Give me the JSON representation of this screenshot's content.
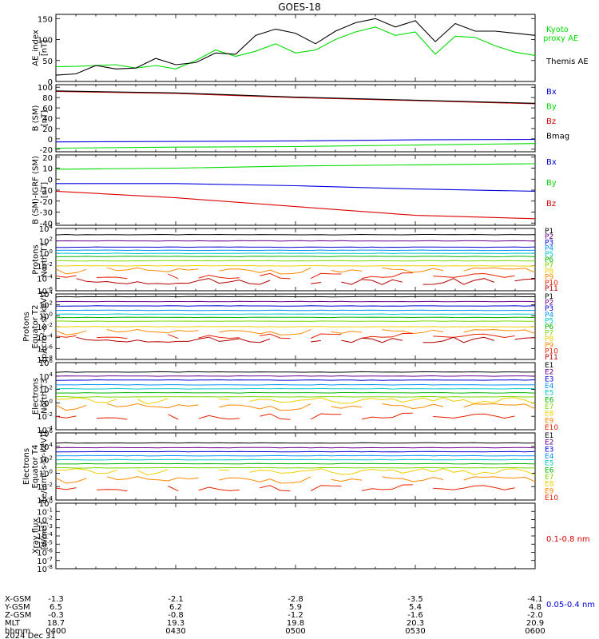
{
  "title": "GOES-18",
  "colors": {
    "black": "#000000",
    "green": "#00dd00",
    "blue": "#0000dd",
    "red": "#dd0000",
    "channels": [
      "#000000",
      "#6a0090",
      "#0000d8",
      "#0090ff",
      "#00c8c8",
      "#00b400",
      "#7ad800",
      "#f0d000",
      "#ff8800",
      "#e82000",
      "#b40000"
    ]
  },
  "chart_data": [
    {
      "type": "line",
      "id": "ae",
      "ylabel": "AE_index\n[nT]",
      "ylim": [
        0,
        160
      ],
      "yticks": [
        0,
        50,
        100,
        150
      ],
      "x": [
        "0400",
        "0405",
        "0410",
        "0415",
        "0420",
        "0425",
        "0430",
        "0435",
        "0440",
        "0445",
        "0450",
        "0455",
        "0500",
        "0505",
        "0510",
        "0515",
        "0520",
        "0525",
        "0530",
        "0535",
        "0540",
        "0545",
        "0550",
        "0555",
        "0600"
      ],
      "series": [
        {
          "name": "Kyoto proxy AE",
          "label": "Kyoto\nproxy AE",
          "color": "green",
          "values": [
            35,
            36,
            38,
            40,
            32,
            38,
            30,
            50,
            75,
            60,
            72,
            90,
            68,
            75,
            100,
            118,
            130,
            110,
            118,
            65,
            108,
            105,
            85,
            70,
            62
          ]
        },
        {
          "name": "Themis AE",
          "label": "Themis AE",
          "color": "black",
          "values": [
            15,
            18,
            38,
            30,
            32,
            55,
            40,
            45,
            68,
            65,
            110,
            125,
            115,
            90,
            120,
            140,
            150,
            130,
            145,
            95,
            138,
            120,
            120,
            115,
            110
          ]
        }
      ]
    },
    {
      "type": "line",
      "id": "bsm",
      "ylabel": "B (SM)\n[nT]",
      "ylim": [
        -25,
        105
      ],
      "yticks": [
        -20,
        0,
        20,
        40,
        60,
        80,
        100
      ],
      "x": [
        "0400",
        "0430",
        "0500",
        "0530",
        "0600"
      ],
      "series": [
        {
          "name": "Bx",
          "label": "Bx",
          "color": "blue",
          "values": [
            -6,
            -5,
            -4,
            -2,
            -1
          ]
        },
        {
          "name": "By",
          "label": "By",
          "color": "green",
          "values": [
            -18,
            -16,
            -15,
            -12,
            -9
          ]
        },
        {
          "name": "Bz",
          "label": "Bz",
          "color": "red",
          "values": [
            92,
            88,
            80,
            74,
            68
          ]
        },
        {
          "name": "Bmag",
          "label": "Bmag",
          "color": "black",
          "values": [
            93,
            89,
            81,
            75,
            69
          ]
        }
      ]
    },
    {
      "type": "line",
      "id": "bigrf",
      "ylabel": "B (SM)-IGRF (SM)\n[nT]",
      "ylim": [
        -42,
        22
      ],
      "yticks": [
        -40,
        -30,
        -20,
        -10,
        0,
        10,
        20
      ],
      "x": [
        "0400",
        "0430",
        "0500",
        "0530",
        "0600"
      ],
      "series": [
        {
          "name": "Bx",
          "label": "Bx",
          "color": "blue",
          "values": [
            -4,
            -4,
            -6,
            -9,
            -11
          ]
        },
        {
          "name": "By",
          "label": "By",
          "color": "green",
          "values": [
            9,
            10,
            12,
            13,
            14
          ]
        },
        {
          "name": "Bz",
          "label": "Bz",
          "color": "red",
          "values": [
            -11,
            -17,
            -25,
            -33,
            -36
          ]
        }
      ]
    },
    {
      "type": "line",
      "id": "pn",
      "scale": "log",
      "ylabel": "Protons\nNorth T1",
      "ylim": [
        -6,
        4
      ],
      "yticks": [
        4,
        2,
        0,
        -2,
        -4,
        -6
      ],
      "labels": [
        "P1",
        "P2",
        "P3",
        "P4",
        "P5",
        "P6",
        "P7",
        "P8",
        "P9",
        "P10",
        "P11"
      ],
      "levels": [
        3.0,
        2.0,
        1.0,
        0.5,
        0.0,
        -0.5,
        -1.2,
        -2.0,
        -2.8,
        -3.6,
        -4.5
      ]
    },
    {
      "type": "line",
      "id": "pe",
      "scale": "log",
      "ylabel": "Protons\nEquator T2\n[p/(cm²-s-sr-keV)]",
      "ylim": [
        -8,
        4
      ],
      "yticks": [
        4,
        2,
        0,
        -2,
        -4,
        -6,
        -8
      ],
      "labels": [
        "P1",
        "P2",
        "P3",
        "P4",
        "P5",
        "P6",
        "P7",
        "P8",
        "P9",
        "P10",
        "P11"
      ],
      "levels": [
        3.5,
        2.6,
        1.8,
        1.0,
        0.3,
        -0.3,
        -1.0,
        -2.0,
        -3.0,
        -3.7,
        -4.4
      ]
    },
    {
      "type": "line",
      "id": "en",
      "scale": "log",
      "ylabel": "Electrons\nNorth T3",
      "ylim": [
        -4,
        6
      ],
      "yticks": [
        6,
        4,
        2,
        0,
        -2,
        -4
      ],
      "labels": [
        "E1",
        "E2",
        "E3",
        "E4",
        "E5",
        "E6",
        "E7",
        "E8",
        "E9",
        "E10"
      ],
      "levels": [
        4.6,
        4.0,
        3.4,
        2.7,
        2.1,
        1.5,
        0.9,
        0.3,
        -0.6,
        -2.0
      ]
    },
    {
      "type": "line",
      "id": "ee",
      "scale": "log",
      "ylabel": "Electrons\nEquator T4\n[e/(cm²-s-sr-keV)]",
      "ylim": [
        -4,
        6
      ],
      "yticks": [
        6,
        4,
        2,
        0,
        -2,
        -4
      ],
      "labels": [
        "E1",
        "E2",
        "E3",
        "E4",
        "E5",
        "E6",
        "E7",
        "E8",
        "E9",
        "E10"
      ],
      "levels": [
        4.5,
        3.8,
        3.2,
        2.6,
        2.0,
        1.4,
        0.8,
        0.2,
        -1.0,
        -2.2
      ]
    },
    {
      "type": "line",
      "id": "xray",
      "scale": "log",
      "ylabel": "Xray flux\n[W/m²]",
      "ylim": [
        -8,
        0
      ],
      "yticks": [
        0,
        -1,
        -2,
        -3,
        -4,
        -5,
        -6,
        -7,
        -8
      ],
      "series": [
        {
          "name": "0.1-0.8 nm",
          "label": "0.1-0.8 nm",
          "color": "red",
          "values": []
        },
        {
          "name": "0.05-0.4 nm",
          "label": "0.05-0.4 nm",
          "color": "blue",
          "values": []
        }
      ]
    }
  ],
  "x_axis": {
    "row_labels": [
      "X-GSM",
      "Y-GSM",
      "Z-GSM",
      "MLT",
      "hhmm",
      "2024 Dec 31"
    ],
    "columns": [
      {
        "x": "-1.3",
        "y": "6.5",
        "z": "-0.3",
        "mlt": "18.7",
        "hhmm": "0400"
      },
      {
        "x": "-2.1",
        "y": "6.2",
        "z": "-0.8",
        "mlt": "19.3",
        "hhmm": "0430"
      },
      {
        "x": "-2.8",
        "y": "5.9",
        "z": "-1.2",
        "mlt": "19.8",
        "hhmm": "0500"
      },
      {
        "x": "-3.5",
        "y": "5.4",
        "z": "-1.6",
        "mlt": "20.3",
        "hhmm": "0530"
      },
      {
        "x": "-4.1",
        "y": "4.8",
        "z": "-2.0",
        "mlt": "20.9",
        "hhmm": "0600"
      }
    ]
  }
}
